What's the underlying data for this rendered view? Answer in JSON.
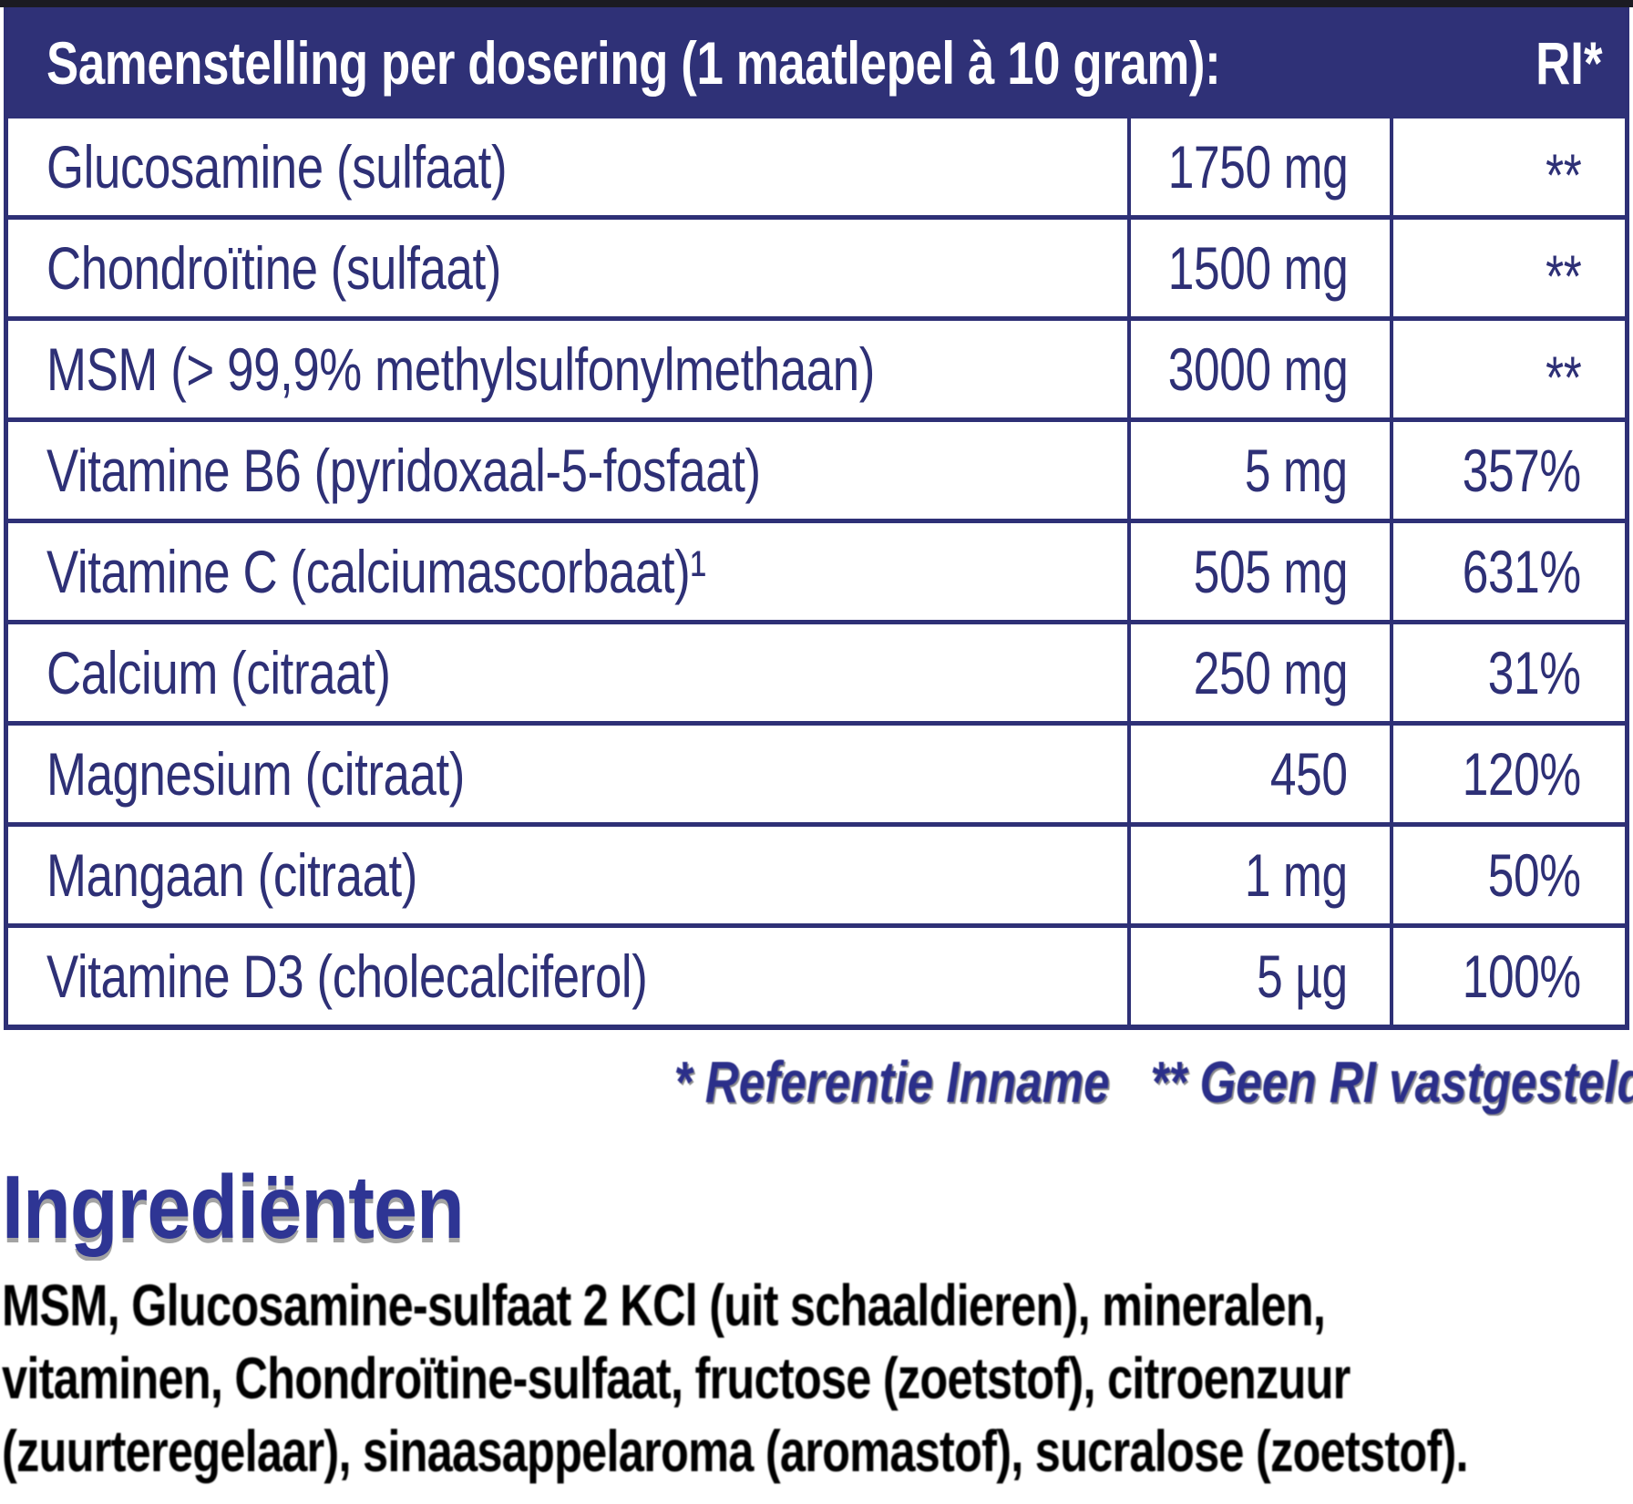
{
  "colors": {
    "table_navy": "#2E3076",
    "header_background": "#2F3177",
    "header_text": "#FFFFFF",
    "heading_blue": "#2E3594",
    "footnote_blue": "#2B2F8A",
    "ingredients_text": "#000000"
  },
  "table": {
    "header": {
      "title": "Samenstelling per dosering (1 maatlepel à 10 gram):",
      "ri_label": "RI*"
    },
    "rows": [
      {
        "label": "Glucosamine (sulfaat)",
        "amount": "1750 mg",
        "ri": "**"
      },
      {
        "label": "Chondroïtine (sulfaat)",
        "amount": "1500 mg",
        "ri": "**"
      },
      {
        "label": "MSM (> 99,9% methylsulfonylmethaan)",
        "amount": "3000 mg",
        "ri": "**"
      },
      {
        "label": "Vitamine B6 (pyridoxaal-5-fosfaat)",
        "amount": "5 mg",
        "ri": "357%"
      },
      {
        "label": "Vitamine C (calciumascorbaat)¹",
        "amount": "505 mg",
        "ri": "631%"
      },
      {
        "label": "Calcium (citraat)",
        "amount": "250 mg",
        "ri": "31%"
      },
      {
        "label": "Magnesium (citraat)",
        "amount": "450",
        "ri": "120%"
      },
      {
        "label": "Mangaan (citraat)",
        "amount": "1 mg",
        "ri": "50%"
      },
      {
        "label": "Vitamine D3 (cholecalciferol)",
        "amount": "5 µg",
        "ri": "100%"
      }
    ]
  },
  "footnotes": {
    "reference": "* Referentie Inname",
    "none_established": "** Geen RI vastgesteld"
  },
  "ingredients": {
    "heading": "Ingrediënten",
    "lines": [
      "MSM, Glucosamine-sulfaat 2 KCl (uit schaaldieren), mineralen,",
      "vitaminen, Chondroïtine-sulfaat, fructose (zoetstof), citroenzuur",
      "(zuurteregelaar), sinaasappelaroma (aromastof), sucralose (zoetstof)."
    ]
  }
}
